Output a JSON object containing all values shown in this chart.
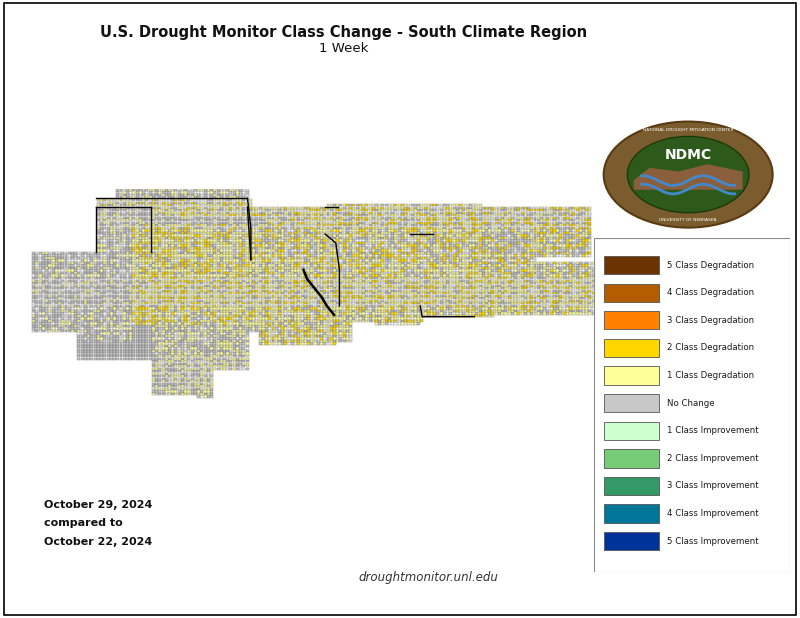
{
  "title_line1": "U.S. Drought Monitor Class Change - South Climate Region",
  "title_line2": "1 Week",
  "date_line1": "October 29, 2024",
  "date_line2": "compared to",
  "date_line3": "October 22, 2024",
  "website_text": "droughtmonitor.unl.edu",
  "legend_entries": [
    {
      "label": "5 Class Degradation",
      "color": "#6b3300"
    },
    {
      "label": "4 Class Degradation",
      "color": "#b35c00"
    },
    {
      "label": "3 Class Degradation",
      "color": "#ff8000"
    },
    {
      "label": "2 Class Degradation",
      "color": "#ffd700"
    },
    {
      "label": "1 Class Degradation",
      "color": "#ffff99"
    },
    {
      "label": "No Change",
      "color": "#c8c8c8"
    },
    {
      "label": "1 Class Improvement",
      "color": "#ccffcc"
    },
    {
      "label": "2 Class Improvement",
      "color": "#77cc77"
    },
    {
      "label": "3 Class Improvement",
      "color": "#339966"
    },
    {
      "label": "4 Class Improvement",
      "color": "#007799"
    },
    {
      "label": "5 Class Improvement",
      "color": "#003399"
    }
  ],
  "background_color": "#ffffff",
  "fig_width": 8.0,
  "fig_height": 6.18
}
